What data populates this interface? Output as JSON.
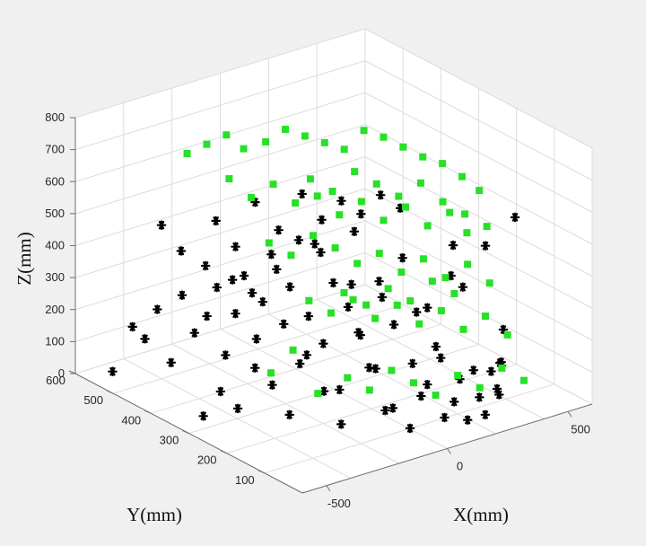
{
  "chart_data": {
    "type": "scatter",
    "title": "",
    "xlabel": "X(mm)",
    "ylabel": "Y(mm)",
    "zlabel": "Z(mm)",
    "xlim": [
      -600,
      600
    ],
    "ylim": [
      0,
      600
    ],
    "zlim": [
      0,
      800
    ],
    "x_ticks": [
      "-500",
      "0",
      "500"
    ],
    "y_ticks": [
      "100",
      "200",
      "300",
      "400",
      "500",
      "600"
    ],
    "z_ticks": [
      "0",
      "100",
      "200",
      "300",
      "400",
      "500",
      "600",
      "700",
      "800"
    ],
    "x_tick_values": [
      -500,
      0,
      500
    ],
    "y_tick_values": [
      100,
      200,
      300,
      400,
      500,
      600
    ],
    "z_tick_values": [
      0,
      100,
      200,
      300,
      400,
      500,
      600,
      700,
      800
    ],
    "grid": true,
    "legend": "none",
    "series": [
      {
        "marker": "star",
        "color": "#000000",
        "points": [
          [
            -540,
            540,
            30
          ],
          [
            -520,
            500,
            190
          ],
          [
            -500,
            480,
            160
          ],
          [
            -480,
            460,
            260
          ],
          [
            -470,
            430,
            110
          ],
          [
            -440,
            420,
            320
          ],
          [
            -420,
            400,
            210
          ],
          [
            -400,
            380,
            270
          ],
          [
            -390,
            360,
            370
          ],
          [
            -370,
            350,
            160
          ],
          [
            -360,
            330,
            300
          ],
          [
            -340,
            320,
            420
          ],
          [
            -320,
            300,
            230
          ],
          [
            -310,
            290,
            350
          ],
          [
            -290,
            280,
            500
          ],
          [
            -270,
            260,
            290
          ],
          [
            -260,
            250,
            410
          ],
          [
            -250,
            230,
            180
          ],
          [
            -230,
            220,
            330
          ],
          [
            -220,
            210,
            560
          ],
          [
            -200,
            200,
            250
          ],
          [
            -190,
            180,
            450
          ],
          [
            -180,
            170,
            120
          ],
          [
            -160,
            160,
            380
          ],
          [
            -150,
            150,
            620
          ],
          [
            -140,
            140,
            300
          ],
          [
            -120,
            130,
            200
          ],
          [
            -110,
            110,
            480
          ],
          [
            -100,
            100,
            80
          ],
          [
            -80,
            90,
            350
          ],
          [
            -60,
            80,
            560
          ],
          [
            -50,
            60,
            240
          ],
          [
            -30,
            50,
            140
          ],
          [
            -20,
            40,
            420
          ],
          [
            0,
            30,
            300
          ],
          [
            20,
            20,
            80
          ],
          [
            40,
            10,
            620
          ],
          [
            60,
            5,
            200
          ],
          [
            80,
            10,
            480
          ],
          [
            -540,
            300,
            40
          ],
          [
            -500,
            280,
            120
          ],
          [
            -460,
            260,
            70
          ],
          [
            -420,
            240,
            200
          ],
          [
            -380,
            220,
            150
          ],
          [
            -340,
            200,
            60
          ],
          [
            -300,
            180,
            250
          ],
          [
            -260,
            160,
            140
          ],
          [
            -220,
            140,
            40
          ],
          [
            -180,
            120,
            330
          ],
          [
            -140,
            100,
            220
          ],
          [
            -100,
            80,
            100
          ],
          [
            -60,
            60,
            40
          ],
          [
            -20,
            40,
            180
          ],
          [
            20,
            30,
            260
          ],
          [
            60,
            20,
            120
          ],
          [
            100,
            10,
            60
          ],
          [
            140,
            20,
            200
          ],
          [
            180,
            30,
            100
          ],
          [
            220,
            40,
            30
          ],
          [
            260,
            50,
            150
          ],
          [
            300,
            60,
            80
          ],
          [
            340,
            80,
            40
          ],
          [
            380,
            100,
            120
          ],
          [
            420,
            120,
            200
          ],
          [
            460,
            150,
            60
          ],
          [
            500,
            180,
            40
          ],
          [
            -300,
            420,
            520
          ],
          [
            -250,
            400,
            440
          ],
          [
            -200,
            380,
            580
          ],
          [
            -150,
            350,
            500
          ],
          [
            -100,
            320,
            620
          ],
          [
            -50,
            300,
            540
          ],
          [
            0,
            280,
            600
          ],
          [
            50,
            260,
            560
          ],
          [
            100,
            240,
            620
          ],
          [
            150,
            220,
            580
          ],
          [
            -400,
            500,
            480
          ],
          [
            -350,
            480,
            400
          ],
          [
            -280,
            460,
            350
          ],
          [
            -200,
            440,
            300
          ],
          [
            -150,
            420,
            260
          ],
          [
            -80,
            400,
            330
          ],
          [
            -20,
            380,
            420
          ],
          [
            40,
            360,
            380
          ],
          [
            120,
            330,
            280
          ],
          [
            200,
            300,
            240
          ],
          [
            280,
            260,
            200
          ],
          [
            360,
            220,
            320
          ],
          [
            440,
            180,
            420
          ],
          [
            500,
            140,
            520
          ]
        ]
      },
      {
        "marker": "square",
        "color": "#28e028",
        "points": [
          [
            -200,
            560,
            620
          ],
          [
            -150,
            540,
            650
          ],
          [
            -100,
            520,
            680
          ],
          [
            -60,
            500,
            640
          ],
          [
            0,
            480,
            660
          ],
          [
            50,
            460,
            700
          ],
          [
            100,
            440,
            680
          ],
          [
            150,
            420,
            660
          ],
          [
            200,
            400,
            640
          ],
          [
            250,
            380,
            700
          ],
          [
            300,
            360,
            680
          ],
          [
            350,
            340,
            650
          ],
          [
            400,
            320,
            620
          ],
          [
            450,
            300,
            600
          ],
          [
            500,
            280,
            560
          ],
          [
            540,
            260,
            520
          ],
          [
            -120,
            500,
            560
          ],
          [
            -60,
            480,
            500
          ],
          [
            0,
            460,
            540
          ],
          [
            60,
            440,
            480
          ],
          [
            120,
            420,
            500
          ],
          [
            180,
            400,
            440
          ],
          [
            240,
            380,
            480
          ],
          [
            300,
            360,
            420
          ],
          [
            360,
            340,
            460
          ],
          [
            420,
            320,
            400
          ],
          [
            480,
            300,
            440
          ],
          [
            520,
            280,
            380
          ],
          [
            -80,
            420,
            400
          ],
          [
            -20,
            400,
            360
          ],
          [
            40,
            380,
            420
          ],
          [
            100,
            360,
            380
          ],
          [
            160,
            340,
            330
          ],
          [
            220,
            320,
            360
          ],
          [
            280,
            300,
            300
          ],
          [
            340,
            280,
            340
          ],
          [
            400,
            260,
            280
          ],
          [
            460,
            240,
            320
          ],
          [
            520,
            220,
            260
          ],
          [
            -40,
            340,
            260
          ],
          [
            20,
            320,
            220
          ],
          [
            80,
            300,
            260
          ],
          [
            140,
            280,
            200
          ],
          [
            200,
            260,
            240
          ],
          [
            260,
            240,
            180
          ],
          [
            320,
            220,
            220
          ],
          [
            380,
            200,
            160
          ],
          [
            440,
            180,
            200
          ],
          [
            500,
            160,
            140
          ],
          [
            -100,
            200,
            120
          ],
          [
            -40,
            180,
            80
          ],
          [
            20,
            160,
            140
          ],
          [
            80,
            140,
            100
          ],
          [
            140,
            120,
            60
          ],
          [
            200,
            100,
            120
          ],
          [
            260,
            80,
            80
          ],
          [
            320,
            60,
            140
          ],
          [
            380,
            40,
            100
          ],
          [
            -160,
            240,
            60
          ],
          [
            -260,
            300,
            110
          ],
          [
            -200,
            280,
            180
          ],
          [
            60,
            400,
            580
          ],
          [
            120,
            380,
            540
          ],
          [
            180,
            360,
            600
          ],
          [
            240,
            340,
            560
          ],
          [
            300,
            320,
            520
          ],
          [
            360,
            300,
            560
          ],
          [
            420,
            280,
            500
          ],
          [
            480,
            260,
            460
          ],
          [
            540,
            240,
            420
          ],
          [
            -20,
            260,
            330
          ],
          [
            40,
            240,
            290
          ],
          [
            100,
            220,
            340
          ],
          [
            160,
            200,
            300
          ],
          [
            220,
            180,
            360
          ],
          [
            280,
            160,
            320
          ]
        ]
      }
    ]
  }
}
